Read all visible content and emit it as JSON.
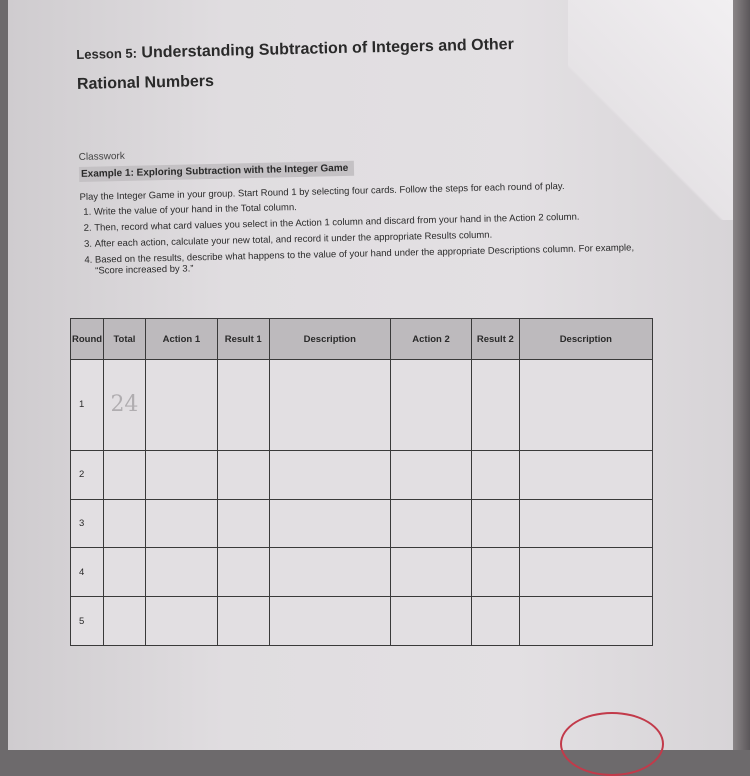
{
  "lesson_title": {
    "prefix": "Lesson 5:",
    "line1": "Understanding Subtraction of Integers and Other",
    "line2": "Rational Numbers"
  },
  "classwork_label": "Classwork",
  "example_heading": "Example 1: Exploring Subtraction with the Integer Game",
  "intro": "Play the Integer Game in your group.  Start Round 1 by selecting four cards.  Follow the steps for each round of play.",
  "steps": [
    "Write the value of your hand in the Total column.",
    "Then, record what card values you select in the Action 1 column and discard from your hand in the Action 2 column.",
    "After each action, calculate your new total, and record it under the appropriate Results column.",
    "Based on the results, describe what happens to the value of your hand under the appropriate Descriptions column. For example, “Score increased by 3.”"
  ],
  "table": {
    "headers": [
      "Round",
      "Total",
      "Action 1",
      "Result 1",
      "Description",
      "Action 2",
      "Result 2",
      "Description"
    ],
    "rows": [
      {
        "round": "1",
        "total": "24"
      },
      {
        "round": "2",
        "total": ""
      },
      {
        "round": "3",
        "total": ""
      },
      {
        "round": "4",
        "total": ""
      },
      {
        "round": "5",
        "total": ""
      }
    ]
  }
}
